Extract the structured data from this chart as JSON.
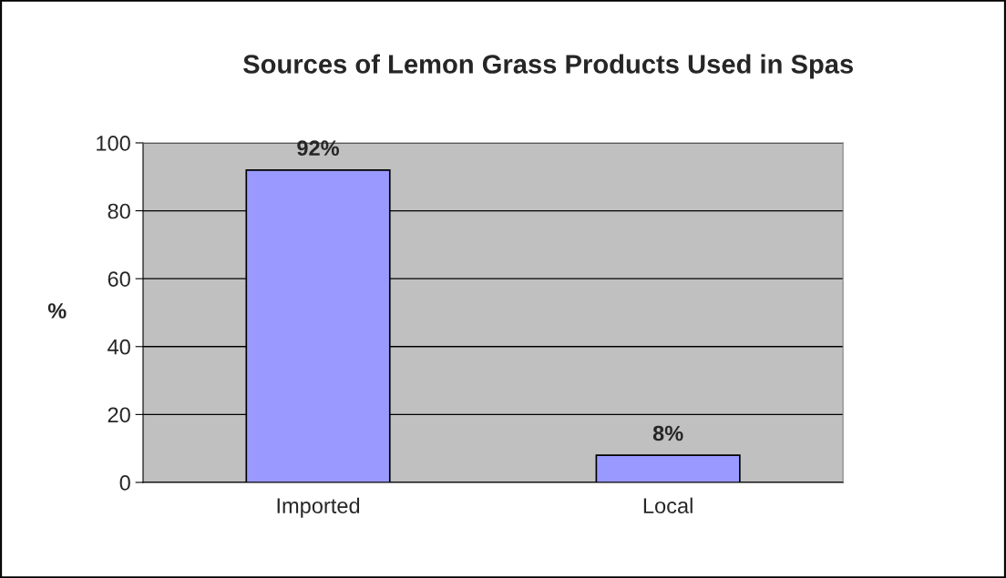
{
  "chart_data": {
    "type": "bar",
    "title": "Sources of Lemon Grass Products Used in Spas",
    "ylabel": "%",
    "categories": [
      "Imported",
      "Local"
    ],
    "series": [
      {
        "color": "#9999ff",
        "values": [
          92,
          8
        ],
        "value_labels": [
          "92%",
          "8%"
        ]
      }
    ],
    "ylim": [
      0,
      100
    ],
    "yticks": [
      0,
      20,
      40,
      60,
      80,
      100
    ],
    "grid": "y",
    "legend": false
  }
}
